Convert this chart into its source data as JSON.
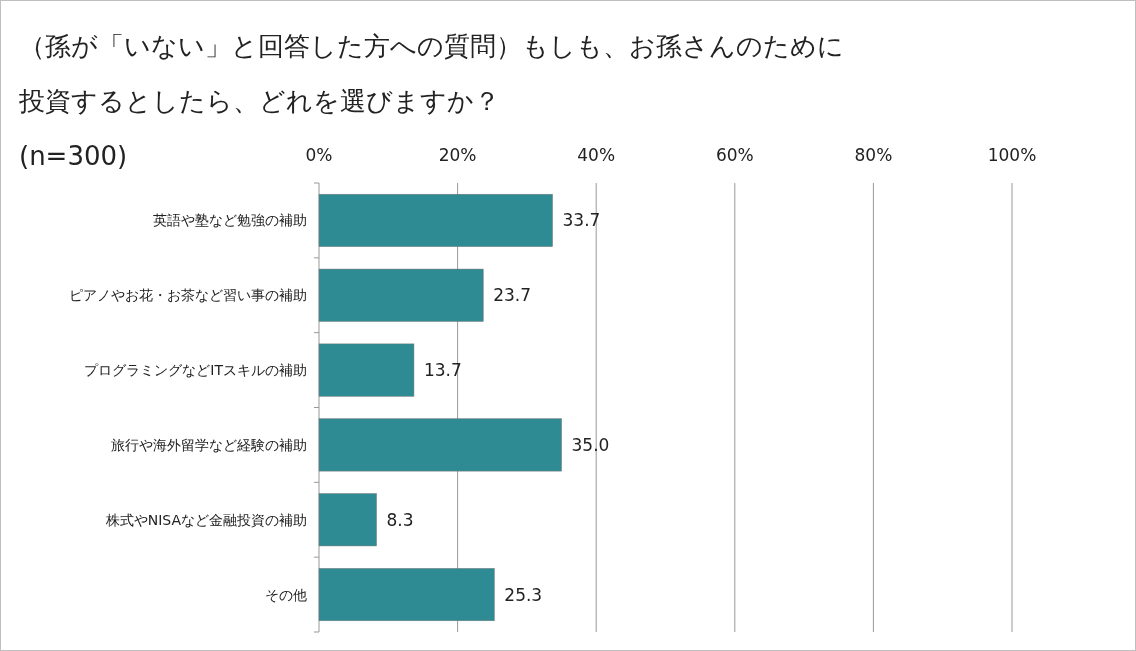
{
  "chart_data": {
    "type": "bar",
    "orientation": "horizontal",
    "title": "（孫が「いない」と回答した方への質問）もしも、お孫さんのために投資するとしたら、どれを選びますか？",
    "subtitle": "(n=300)",
    "categories": [
      "英語や塾など勉強の補助",
      "ピアノやお花・お茶など習い事の補助",
      "プログラミングなどITスキルの補助",
      "旅行や海外留学など経験の補助",
      "株式やNISAなど金融投資の補助",
      "その他"
    ],
    "values": [
      33.7,
      23.7,
      13.7,
      35.0,
      8.3,
      25.3
    ],
    "color": "#2e8b93",
    "xlim": [
      0,
      100
    ],
    "xticks": [
      {
        "value": 0,
        "label": "0%"
      },
      {
        "value": 20,
        "label": "20%"
      },
      {
        "value": 40,
        "label": "40%"
      },
      {
        "value": 60,
        "label": "60%"
      },
      {
        "value": 80,
        "label": "80%"
      },
      {
        "value": 100,
        "label": "100%"
      }
    ],
    "value_labels": [
      "33.7",
      "23.7",
      "13.7",
      "35.0",
      "8.3",
      "25.3"
    ],
    "grid": "x"
  }
}
